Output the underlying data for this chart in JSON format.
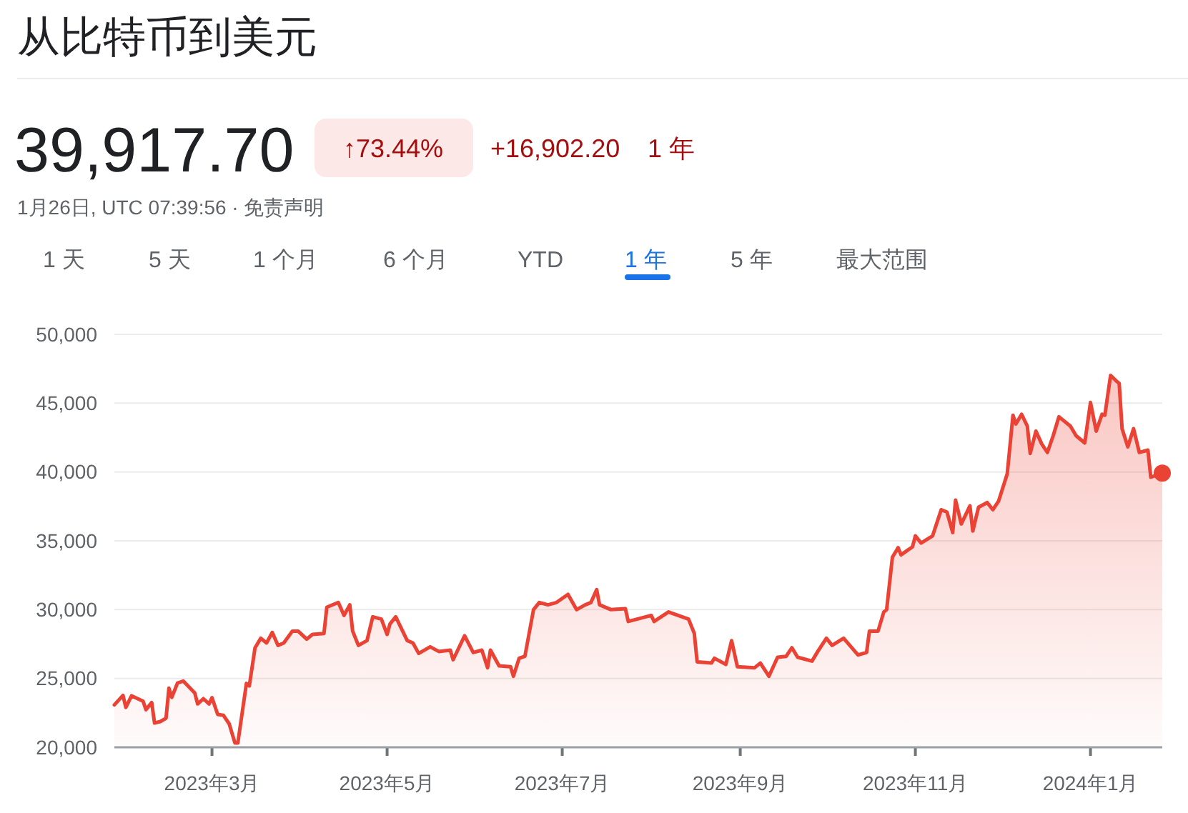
{
  "chart_data": {
    "type": "area",
    "title": "从比特币到美元",
    "annotations": [
      "39,917.70",
      "↑73.44%",
      "+16,902.20",
      "1 年",
      "1月26日, UTC 07:39:56 · 免责声明",
      "1 天",
      "5 天",
      "1 个月",
      "6 个月",
      "YTD",
      "1 年",
      "5 年",
      "最大范围"
    ],
    "x": [
      "2023-01-26",
      "2023-01-29",
      "2023-01-30",
      "2023-02-01",
      "2023-02-05",
      "2023-02-06",
      "2023-02-08",
      "2023-02-09",
      "2023-02-11",
      "2023-02-13",
      "2023-02-14",
      "2023-02-15",
      "2023-02-17",
      "2023-02-19",
      "2023-02-23",
      "2023-02-24",
      "2023-02-26",
      "2023-02-28",
      "2023-03-01",
      "2023-03-03",
      "2023-03-05",
      "2023-03-07",
      "2023-03-09",
      "2023-03-10",
      "2023-03-13",
      "2023-03-14",
      "2023-03-16",
      "2023-03-18",
      "2023-03-20",
      "2023-03-22",
      "2023-03-24",
      "2023-03-26",
      "2023-03-29",
      "2023-03-31",
      "2023-04-03",
      "2023-04-05",
      "2023-04-09",
      "2023-04-10",
      "2023-04-14",
      "2023-04-16",
      "2023-04-18",
      "2023-04-19",
      "2023-04-21",
      "2023-04-24",
      "2023-04-26",
      "2023-04-29",
      "2023-05-01",
      "2023-05-02",
      "2023-05-04",
      "2023-05-08",
      "2023-05-10",
      "2023-05-12",
      "2023-05-16",
      "2023-05-19",
      "2023-05-23",
      "2023-05-24",
      "2023-05-28",
      "2023-05-31",
      "2023-06-03",
      "2023-06-05",
      "2023-06-06",
      "2023-06-09",
      "2023-06-13",
      "2023-06-14",
      "2023-06-16",
      "2023-06-18",
      "2023-06-21",
      "2023-06-23",
      "2023-06-26",
      "2023-06-29",
      "2023-07-03",
      "2023-07-06",
      "2023-07-09",
      "2023-07-11",
      "2023-07-13",
      "2023-07-14",
      "2023-07-18",
      "2023-07-23",
      "2023-07-24",
      "2023-08-01",
      "2023-08-02",
      "2023-08-07",
      "2023-08-14",
      "2023-08-16",
      "2023-08-17",
      "2023-08-22",
      "2023-08-23",
      "2023-08-27",
      "2023-08-29",
      "2023-08-31",
      "2023-09-06",
      "2023-09-08",
      "2023-09-11",
      "2023-09-14",
      "2023-09-17",
      "2023-09-19",
      "2023-09-21",
      "2023-09-26",
      "2023-09-28",
      "2023-10-01",
      "2023-10-03",
      "2023-10-07",
      "2023-10-12",
      "2023-10-15",
      "2023-10-16",
      "2023-10-19",
      "2023-10-21",
      "2023-10-22",
      "2023-10-24",
      "2023-10-26",
      "2023-10-27",
      "2023-10-31",
      "2023-11-01",
      "2023-11-03",
      "2023-11-07",
      "2023-11-10",
      "2023-11-12",
      "2023-11-14",
      "2023-11-15",
      "2023-11-17",
      "2023-11-20",
      "2023-11-21",
      "2023-11-23",
      "2023-11-26",
      "2023-11-28",
      "2023-11-30",
      "2023-12-03",
      "2023-12-05",
      "2023-12-06",
      "2023-12-08",
      "2023-12-10",
      "2023-12-11",
      "2023-12-13",
      "2023-12-15",
      "2023-12-17",
      "2023-12-19",
      "2023-12-21",
      "2023-12-25",
      "2023-12-27",
      "2023-12-30",
      "2024-01-01",
      "2024-01-03",
      "2024-01-05",
      "2024-01-06",
      "2024-01-08",
      "2024-01-10",
      "2024-01-11",
      "2024-01-12",
      "2024-01-14",
      "2024-01-16",
      "2024-01-18",
      "2024-01-21",
      "2024-01-22",
      "2024-01-26"
    ],
    "series": [
      {
        "color": "#ea4335",
        "values": [
          23080,
          23770,
          22900,
          23740,
          23350,
          22730,
          23250,
          21760,
          21870,
          22110,
          24290,
          23630,
          24670,
          24810,
          23950,
          23150,
          23530,
          23150,
          23600,
          22390,
          22320,
          21700,
          20310,
          20310,
          24640,
          24460,
          27230,
          27920,
          27580,
          28340,
          27400,
          27580,
          28440,
          28440,
          27860,
          28200,
          28270,
          30170,
          30520,
          29580,
          30350,
          28440,
          27400,
          27750,
          29480,
          29310,
          28200,
          28960,
          29480,
          27750,
          27580,
          26820,
          27300,
          26960,
          27060,
          26360,
          28100,
          26880,
          27060,
          25780,
          27060,
          25920,
          25850,
          25160,
          26470,
          26610,
          30000,
          30520,
          30350,
          30520,
          31110,
          30000,
          30350,
          30520,
          31450,
          30350,
          30000,
          30070,
          29140,
          29580,
          29140,
          29830,
          29310,
          28270,
          26200,
          26120,
          26470,
          26020,
          27750,
          25850,
          25780,
          26120,
          25160,
          26540,
          26610,
          27230,
          26540,
          26260,
          26960,
          27920,
          27400,
          27920,
          26710,
          26880,
          28440,
          28440,
          29830,
          30000,
          33810,
          34500,
          33980,
          34560,
          35360,
          34840,
          35360,
          37260,
          37090,
          35600,
          37960,
          36230,
          37540,
          35710,
          37440,
          37780,
          37260,
          37890,
          39860,
          44120,
          43490,
          44190,
          43330,
          41350,
          42970,
          42040,
          41420,
          42630,
          44010,
          43330,
          42630,
          42110,
          45050,
          42970,
          44190,
          44120,
          47020,
          46610,
          46440,
          43150,
          41830,
          43150,
          41420,
          41590,
          39620,
          39920
        ]
      }
    ],
    "xlim": [
      "2023-01-26",
      "2024-01-26"
    ],
    "xticks": [
      {
        "value": "2023-03-01",
        "label": "2023年3月"
      },
      {
        "value": "2023-05-01",
        "label": "2023年5月"
      },
      {
        "value": "2023-07-01",
        "label": "2023年7月"
      },
      {
        "value": "2023-09-01",
        "label": "2023年9月"
      },
      {
        "value": "2023-11-01",
        "label": "2023年11月"
      },
      {
        "value": "2024-01-01",
        "label": "2024年1月"
      }
    ],
    "ylim": [
      20000,
      50000
    ],
    "yticks": [
      {
        "value": 20000,
        "label": "20,000"
      },
      {
        "value": 25000,
        "label": "25,000"
      },
      {
        "value": 30000,
        "label": "30,000"
      },
      {
        "value": 35000,
        "label": "35,000"
      },
      {
        "value": 40000,
        "label": "40,000"
      },
      {
        "value": 45000,
        "label": "45,000"
      },
      {
        "value": 50000,
        "label": "50,000"
      }
    ],
    "grid": "y"
  }
}
